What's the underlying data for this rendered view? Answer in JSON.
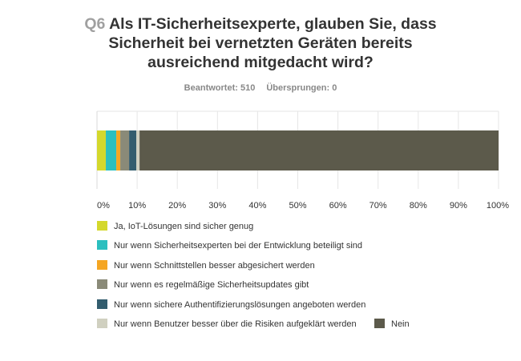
{
  "header": {
    "qnum": "Q6",
    "title": "Als IT-Sicherheitsexperte, glauben Sie, dass Sicherheit bei vernetzten Geräten bereits ausreichend mitgedacht wird?",
    "answered": "Beantwortet: 510",
    "skipped": "Übersprungen: 0"
  },
  "chart_data": {
    "type": "bar",
    "orientation": "horizontal",
    "stacked": true,
    "categories": [
      ""
    ],
    "xlim": [
      0,
      100
    ],
    "xticks": [
      "0%",
      "10%",
      "20%",
      "30%",
      "40%",
      "50%",
      "60%",
      "70%",
      "80%",
      "90%",
      "100%"
    ],
    "grid": true,
    "legend_position": "bottom",
    "series": [
      {
        "name": "Ja, IoT-Lösungen sind sicher genug",
        "values": [
          2.2
        ],
        "color": "#d4d82c"
      },
      {
        "name": "Nur wenn Sicherheitsexperten bei der Entwicklung beteiligt sind",
        "values": [
          2.6
        ],
        "color": "#2bbfbf"
      },
      {
        "name": "Nur wenn Schnittstellen besser abgesichert werden",
        "values": [
          1.0
        ],
        "color": "#f5a623"
      },
      {
        "name": "Nur wenn es regelmäßige Sicherheitsupdates gibt",
        "values": [
          2.2
        ],
        "color": "#8a8a78"
      },
      {
        "name": "Nur wenn sichere Authentifizierungslösungen angeboten werden",
        "values": [
          1.8
        ],
        "color": "#335d6e"
      },
      {
        "name": "Nur wenn Benutzer besser über die Risiken aufgeklärt werden",
        "values": [
          0.8
        ],
        "color": "#d0d0c0"
      },
      {
        "name": "Nein",
        "values": [
          89.4
        ],
        "color": "#5c5a4b"
      }
    ]
  }
}
